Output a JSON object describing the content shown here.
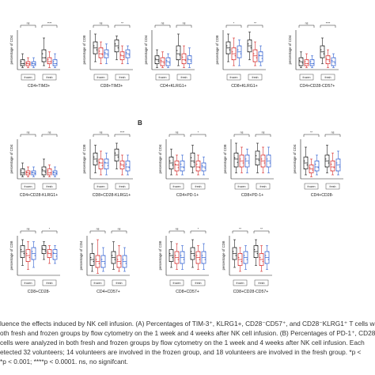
{
  "panel_letter_B": "B",
  "colors": {
    "black": "#1a1a1a",
    "red": "#d62b2b",
    "blue": "#2f5fd0"
  },
  "chart_data": [
    {
      "type": "box",
      "title": "CD4+TIM3+",
      "ylabel": "percentage of CD4",
      "groups": [
        "frozen",
        "fresh"
      ],
      "significance": [
        "ns",
        "****"
      ],
      "series": [
        {
          "color": "black",
          "values": [
            [
              1,
              2,
              3,
              5,
              8
            ],
            [
              2,
              4,
              6,
              10,
              16
            ]
          ]
        },
        {
          "color": "red",
          "values": [
            [
              1,
              2,
              3,
              4,
              6
            ],
            [
              1,
              3,
              4,
              6,
              9
            ]
          ]
        },
        {
          "color": "blue",
          "values": [
            [
              1,
              2,
              3,
              4,
              6
            ],
            [
              1,
              2,
              3,
              5,
              8
            ]
          ]
        }
      ]
    },
    {
      "type": "box",
      "title": "CD8+TIM3+",
      "ylabel": "percentage of CD8",
      "groups": [
        "frozen",
        "fresh"
      ],
      "significance": [
        "ns",
        "**"
      ],
      "series": [
        {
          "color": "black",
          "values": [
            [
              4,
              8,
              11,
              14,
              18
            ],
            [
              5,
              9,
              12,
              15,
              17
            ]
          ]
        },
        {
          "color": "red",
          "values": [
            [
              3,
              6,
              8,
              11,
              14
            ],
            [
              3,
              5,
              7,
              9,
              12
            ]
          ]
        },
        {
          "color": "blue",
          "values": [
            [
              3,
              6,
              8,
              10,
              13
            ],
            [
              3,
              6,
              8,
              10,
              12
            ]
          ]
        }
      ]
    },
    {
      "type": "box",
      "title": "CD4+KLRG1+",
      "ylabel": "percentage of CD4",
      "groups": [
        "frozen",
        "fresh"
      ],
      "significance": [
        "ns",
        "ns"
      ],
      "series": [
        {
          "color": "black",
          "values": [
            [
              1,
              3,
              5,
              7,
              10
            ],
            [
              2,
              5,
              8,
              12,
              18
            ]
          ]
        },
        {
          "color": "red",
          "values": [
            [
              1,
              2,
              4,
              6,
              9
            ],
            [
              1,
              3,
              5,
              8,
              12
            ]
          ]
        },
        {
          "color": "blue",
          "values": [
            [
              1,
              2,
              4,
              6,
              8
            ],
            [
              1,
              3,
              5,
              7,
              11
            ]
          ]
        }
      ]
    },
    {
      "type": "box",
      "title": "CD8+KLRG1+",
      "ylabel": "percentage of CD8",
      "groups": [
        "frozen",
        "fresh"
      ],
      "significance": [
        "*",
        "**"
      ],
      "series": [
        {
          "color": "black",
          "values": [
            [
              4,
              8,
              11,
              14,
              18
            ],
            [
              5,
              9,
              12,
              15,
              19
            ]
          ]
        },
        {
          "color": "red",
          "values": [
            [
              2,
              5,
              8,
              11,
              16
            ],
            [
              2,
              4,
              7,
              10,
              14
            ]
          ]
        },
        {
          "color": "blue",
          "values": [
            [
              2,
              6,
              9,
              12,
              15
            ],
            [
              2,
              4,
              7,
              9,
              12
            ]
          ]
        }
      ]
    },
    {
      "type": "box",
      "title": "CD4+CD28-CD57+",
      "ylabel": "percentage of CD4",
      "groups": [
        "frozen",
        "fresh"
      ],
      "significance": [
        "ns",
        "****"
      ],
      "series": [
        {
          "color": "black",
          "values": [
            [
              1,
              2,
              4,
              6,
              9
            ],
            [
              3,
              6,
              9,
              12,
              16
            ]
          ]
        },
        {
          "color": "red",
          "values": [
            [
              1,
              2,
              3,
              5,
              8
            ],
            [
              1,
              3,
              5,
              7,
              10
            ]
          ]
        },
        {
          "color": "blue",
          "values": [
            [
              1,
              2,
              3,
              5,
              7
            ],
            [
              1,
              2,
              4,
              6,
              8
            ]
          ]
        }
      ]
    },
    {
      "type": "box",
      "title": "CD4+CD28-KLRG1+",
      "ylabel": "percentage of CD4",
      "groups": [
        "frozen",
        "fresh"
      ],
      "significance": [
        "ns",
        "ns"
      ],
      "series": [
        {
          "color": "black",
          "values": [
            [
              1,
              2,
              3,
              5,
              8
            ],
            [
              1,
              2,
              4,
              6,
              10
            ]
          ]
        },
        {
          "color": "red",
          "values": [
            [
              1,
              2,
              3,
              4,
              6
            ],
            [
              1,
              2,
              3,
              5,
              7
            ]
          ]
        },
        {
          "color": "blue",
          "values": [
            [
              1,
              2,
              3,
              4,
              6
            ],
            [
              1,
              2,
              3,
              4,
              6
            ]
          ]
        }
      ]
    },
    {
      "type": "box",
      "title": "CD8+CD28-KLRG1+",
      "ylabel": "percentage of CD8",
      "groups": [
        "frozen",
        "fresh"
      ],
      "significance": [
        "ns",
        "****"
      ],
      "series": [
        {
          "color": "black",
          "values": [
            [
              3,
              7,
              10,
              13,
              17
            ],
            [
              5,
              9,
              12,
              15,
              18
            ]
          ]
        },
        {
          "color": "red",
          "values": [
            [
              2,
              5,
              8,
              10,
              14
            ],
            [
              2,
              5,
              7,
              9,
              12
            ]
          ]
        },
        {
          "color": "blue",
          "values": [
            [
              2,
              5,
              8,
              10,
              13
            ],
            [
              2,
              4,
              6,
              9,
              12
            ]
          ]
        }
      ]
    },
    {
      "type": "box",
      "title": "CD4+PD-1+",
      "ylabel": "percentage of CD4",
      "groups": [
        "frozen",
        "fresh"
      ],
      "significance": [
        "ns",
        "*"
      ],
      "series": [
        {
          "color": "black",
          "values": [
            [
              2,
              5,
              8,
              11,
              15
            ],
            [
              3,
              6,
              9,
              13,
              17
            ]
          ]
        },
        {
          "color": "red",
          "values": [
            [
              2,
              4,
              7,
              9,
              12
            ],
            [
              2,
              4,
              6,
              9,
              12
            ]
          ]
        },
        {
          "color": "blue",
          "values": [
            [
              2,
              4,
              6,
              9,
              12
            ],
            [
              2,
              4,
              6,
              8,
              11
            ]
          ]
        }
      ]
    },
    {
      "type": "box",
      "title": "CD8+PD-1+",
      "ylabel": "percentage of CD8",
      "groups": [
        "frozen",
        "fresh"
      ],
      "significance": [
        "ns",
        "ns"
      ],
      "series": [
        {
          "color": "black",
          "values": [
            [
              3,
              6,
              10,
              13,
              18
            ],
            [
              3,
              7,
              10,
              14,
              18
            ]
          ]
        },
        {
          "color": "red",
          "values": [
            [
              3,
              6,
              9,
              12,
              16
            ],
            [
              3,
              6,
              9,
              12,
              16
            ]
          ]
        },
        {
          "color": "blue",
          "values": [
            [
              3,
              6,
              9,
              12,
              15
            ],
            [
              3,
              6,
              9,
              12,
              16
            ]
          ]
        }
      ]
    },
    {
      "type": "box",
      "title": "CD4+CD28-",
      "ylabel": "percentage of CD4",
      "groups": [
        "frozen",
        "fresh"
      ],
      "significance": [
        "**",
        "ns"
      ],
      "series": [
        {
          "color": "black",
          "values": [
            [
              2,
              5,
              8,
              11,
              16
            ],
            [
              3,
              6,
              9,
              12,
              17
            ]
          ]
        },
        {
          "color": "red",
          "values": [
            [
              1,
              3,
              5,
              7,
              10
            ],
            [
              2,
              4,
              6,
              9,
              13
            ]
          ]
        },
        {
          "color": "blue",
          "values": [
            [
              2,
              4,
              6,
              9,
              12
            ],
            [
              2,
              4,
              7,
              10,
              14
            ]
          ]
        }
      ]
    },
    {
      "type": "box",
      "title": "CD8+CD28-",
      "ylabel": "percentage of CD8",
      "groups": [
        "frozen",
        "fresh"
      ],
      "significance": [
        "ns",
        "*"
      ],
      "series": [
        {
          "color": "black",
          "values": [
            [
              5,
              9,
              12,
              15,
              18
            ],
            [
              8,
              11,
              13,
              15,
              17
            ]
          ]
        },
        {
          "color": "red",
          "values": [
            [
              3,
              7,
              10,
              13,
              17
            ],
            [
              6,
              9,
              11,
              13,
              15
            ]
          ]
        },
        {
          "color": "blue",
          "values": [
            [
              4,
              8,
              11,
              14,
              17
            ],
            [
              6,
              8,
              11,
              13,
              15
            ]
          ]
        }
      ]
    },
    {
      "type": "box",
      "title": "CD4+CD57+",
      "ylabel": "percentage of CD4",
      "groups": [
        "frozen",
        "fresh"
      ],
      "significance": [
        "ns",
        "ns"
      ],
      "series": [
        {
          "color": "black",
          "values": [
            [
              2,
              5,
              8,
              11,
              16
            ],
            [
              3,
              6,
              9,
              12,
              17
            ]
          ]
        },
        {
          "color": "red",
          "values": [
            [
              1,
              4,
              7,
              10,
              18
            ],
            [
              2,
              4,
              7,
              10,
              15
            ]
          ]
        },
        {
          "color": "blue",
          "values": [
            [
              2,
              4,
              7,
              10,
              14
            ],
            [
              2,
              4,
              7,
              10,
              14
            ]
          ]
        }
      ]
    },
    {
      "type": "box",
      "title": "CD8+CD57+",
      "ylabel": "percentage of CD8",
      "groups": [
        "frozen",
        "fresh"
      ],
      "significance": [
        "ns",
        "*"
      ],
      "series": [
        {
          "color": "black",
          "values": [
            [
              4,
              7,
              10,
              13,
              17
            ],
            [
              4,
              8,
              11,
              14,
              18
            ]
          ]
        },
        {
          "color": "red",
          "values": [
            [
              3,
              6,
              9,
              12,
              16
            ],
            [
              3,
              6,
              9,
              12,
              15
            ]
          ]
        },
        {
          "color": "blue",
          "values": [
            [
              3,
              6,
              9,
              12,
              15
            ],
            [
              3,
              6,
              9,
              12,
              16
            ]
          ]
        }
      ]
    },
    {
      "type": "box",
      "title": "CD8+CD28-CD57+",
      "ylabel": "percentage of CD8",
      "groups": [
        "frozen",
        "fresh"
      ],
      "significance": [
        "**",
        "**"
      ],
      "series": [
        {
          "color": "black",
          "values": [
            [
              4,
              8,
              11,
              14,
              18
            ],
            [
              5,
              9,
              12,
              15,
              18
            ]
          ]
        },
        {
          "color": "red",
          "values": [
            [
              2,
              5,
              8,
              11,
              14
            ],
            [
              2,
              5,
              8,
              11,
              15
            ]
          ]
        },
        {
          "color": "blue",
          "values": [
            [
              3,
              6,
              9,
              12,
              15
            ],
            [
              3,
              6,
              9,
              12,
              15
            ]
          ]
        }
      ]
    }
  ],
  "caption": {
    "lines": [
      "luence the effects induced by NK cell infusion. (A) Percentages of TIM-3⁺, KLRG1+, CD28⁻CD57⁺, and CD28⁻KLRG1⁺ T cells were",
      "oth fresh and frozen groups by flow cytometry on the 1 week and 4 weeks after NK cell infusion. (B) Percentages of PD-1⁺, CD28⁻,",
      "cells were analyzed in both fresh and frozen groups by flow cytometry on the 1 week and 4 weeks after NK cell infusion. Each",
      "etected 32 volunteers; 14 volunteers are involved in the frozen group, and 18 volunteers are involved in the fresh group. *p <",
      "*p < 0.001; ****p < 0.0001. ns, no signifcant."
    ]
  }
}
